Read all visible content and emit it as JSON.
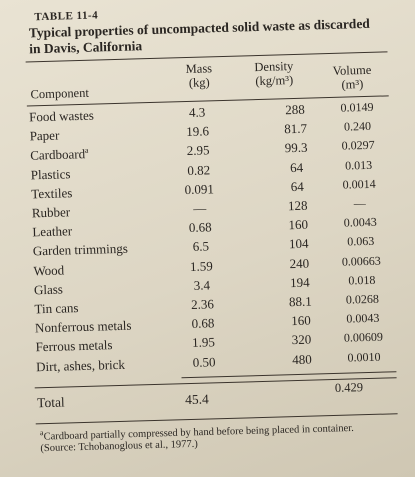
{
  "table": {
    "label": "TABLE 11-4",
    "title_line1": "Typical properties of uncompacted solid waste as discarded",
    "title_line2": "in Davis, California",
    "headers": {
      "component": "Component",
      "mass": "Mass",
      "mass_unit": "(kg)",
      "density": "Density",
      "density_unit": "(kg/m³)",
      "volume": "Volume",
      "volume_unit": "(m³)"
    },
    "rows": [
      {
        "component": "Food wastes",
        "mass": "4.3",
        "density": "288",
        "volume": "0.0149"
      },
      {
        "component": "Paper",
        "mass": "19.6",
        "density": "81.7",
        "volume": "0.240"
      },
      {
        "component": "Cardboard",
        "mass": "2.95",
        "density": "99.3",
        "volume": "0.0297"
      },
      {
        "component": "Plastics",
        "mass": "0.82",
        "density": "64",
        "volume": "0.013"
      },
      {
        "component": "Textiles",
        "mass": "0.091",
        "density": "64",
        "volume": "0.0014"
      },
      {
        "component": "Rubber",
        "mass": "—",
        "density": "128",
        "volume": "—"
      },
      {
        "component": "Leather",
        "mass": "0.68",
        "density": "160",
        "volume": "0.0043"
      },
      {
        "component": "Garden trimmings",
        "mass": "6.5",
        "density": "104",
        "volume": "0.063"
      },
      {
        "component": "Wood",
        "mass": "1.59",
        "density": "240",
        "volume": "0.00663"
      },
      {
        "component": "Glass",
        "mass": "3.4",
        "density": "194",
        "volume": "0.018"
      },
      {
        "component": "Tin cans",
        "mass": "2.36",
        "density": "88.1",
        "volume": "0.0268"
      },
      {
        "component": "Nonferrous metals",
        "mass": "0.68",
        "density": "160",
        "volume": "0.0043"
      },
      {
        "component": "Ferrous metals",
        "mass": "1.95",
        "density": "320",
        "volume": "0.00609"
      },
      {
        "component": "Dirt, ashes, brick",
        "mass": "0.50",
        "density": "480",
        "volume": "0.0010"
      }
    ],
    "cardboard_note_mark": "a",
    "total": {
      "label": "Total",
      "mass": "45.4",
      "volume": "0.429"
    },
    "footnote_mark": "a",
    "footnote": "Cardboard partially compressed by hand before being placed in container.",
    "source": "(Source: Tchobanoglous et al., 1977.)"
  }
}
